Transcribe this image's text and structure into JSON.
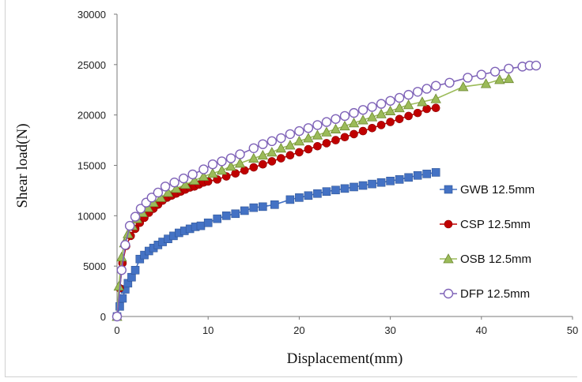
{
  "chart_data": {
    "type": "line",
    "xlabel": "Displacement(mm)",
    "ylabel": "Shear load(N)",
    "xlim": [
      0,
      50
    ],
    "ylim": [
      0,
      30000
    ],
    "xticks": [
      0,
      10,
      20,
      30,
      40,
      50
    ],
    "yticks": [
      0,
      5000,
      10000,
      15000,
      20000,
      25000,
      30000
    ],
    "grid": false,
    "legend_position": "right",
    "series": [
      {
        "name": "GWB 12.5mm",
        "color": "#4472c4",
        "marker": "square",
        "x": [
          0,
          0.3,
          0.6,
          0.9,
          1.2,
          1.6,
          2.0,
          2.5,
          3.0,
          3.5,
          4.0,
          4.5,
          5.0,
          5.6,
          6.2,
          6.8,
          7.4,
          8.0,
          8.6,
          9.2,
          10,
          11,
          12,
          13,
          14,
          15,
          16,
          17.3,
          19,
          20,
          21,
          22,
          23,
          24,
          25,
          26,
          27,
          28,
          29,
          30,
          31,
          32,
          33,
          34,
          35
        ],
        "y": [
          0,
          1000,
          1800,
          2700,
          3300,
          3900,
          4600,
          5700,
          6100,
          6500,
          6800,
          7100,
          7400,
          7700,
          8000,
          8300,
          8500,
          8700,
          8900,
          9000,
          9300,
          9700,
          10000,
          10200,
          10500,
          10800,
          10900,
          11100,
          11600,
          11800,
          12000,
          12200,
          12400,
          12550,
          12700,
          12850,
          13000,
          13150,
          13300,
          13450,
          13600,
          13800,
          14000,
          14150,
          14300
        ]
      },
      {
        "name": "CSP 12.5mm",
        "color": "#c00000",
        "marker": "circle",
        "x": [
          0,
          0.3,
          0.6,
          1.0,
          1.5,
          2.0,
          2.5,
          3.0,
          3.5,
          4.0,
          4.5,
          5.0,
          5.5,
          6.0,
          6.5,
          7.0,
          7.5,
          8.0,
          8.5,
          9.0,
          9.5,
          10,
          11,
          12,
          13,
          14,
          15,
          16,
          17,
          18,
          19,
          20,
          21,
          22,
          23,
          24,
          25,
          26,
          27,
          28,
          29,
          30,
          31,
          32,
          33,
          34,
          35
        ],
        "y": [
          0,
          2800,
          5300,
          7000,
          8000,
          8700,
          9300,
          9800,
          10300,
          10700,
          11100,
          11500,
          11800,
          12000,
          12200,
          12400,
          12600,
          12800,
          12900,
          13100,
          13300,
          13400,
          13600,
          13900,
          14200,
          14500,
          14800,
          15100,
          15400,
          15700,
          16000,
          16300,
          16600,
          16900,
          17200,
          17500,
          17800,
          18100,
          18400,
          18700,
          19000,
          19300,
          19600,
          19900,
          20200,
          20600,
          20700
        ]
      },
      {
        "name": "OSB 12.5mm",
        "color": "#9bbb59",
        "marker": "triangle",
        "x": [
          0,
          0.2,
          0.5,
          0.8,
          1.2,
          1.7,
          2.2,
          2.8,
          3.4,
          4.0,
          4.8,
          5.6,
          6.5,
          7.5,
          8.5,
          9.5,
          10.5,
          11.5,
          12.5,
          13.5,
          15,
          16,
          17,
          18,
          19,
          20,
          21,
          22,
          23,
          24,
          25,
          26,
          27,
          28,
          29,
          30,
          31,
          32,
          33.5,
          35,
          38,
          40.5,
          42,
          43
        ],
        "y": [
          0,
          3000,
          5900,
          7300,
          8200,
          9000,
          9700,
          10300,
          10800,
          11300,
          11800,
          12300,
          12700,
          13100,
          13500,
          13900,
          14200,
          14500,
          14900,
          15200,
          15700,
          16000,
          16300,
          16700,
          17000,
          17400,
          17700,
          18000,
          18300,
          18600,
          18900,
          19200,
          19500,
          19800,
          20100,
          20400,
          20700,
          21000,
          21300,
          21600,
          22800,
          23100,
          23500,
          23600
        ]
      },
      {
        "name": "DFP 12.5mm",
        "color": "#7f63b8",
        "marker": "circle-open",
        "x": [
          0,
          0.5,
          0.9,
          1.4,
          2.0,
          2.6,
          3.2,
          3.8,
          4.5,
          5.3,
          6.3,
          7.3,
          8.3,
          9.5,
          10.5,
          11.5,
          12.5,
          13.5,
          15,
          16,
          17,
          18,
          19,
          20,
          21,
          22,
          23,
          24,
          25,
          26,
          27,
          28,
          29,
          30,
          31,
          32,
          33,
          34,
          35,
          36.5,
          38.5,
          40,
          41.5,
          43,
          44.5,
          45.3,
          46
        ],
        "y": [
          0,
          4600,
          7100,
          9000,
          9900,
          10700,
          11300,
          11800,
          12300,
          12900,
          13300,
          13700,
          14100,
          14600,
          15100,
          15400,
          15700,
          16100,
          16700,
          17100,
          17400,
          17700,
          18100,
          18400,
          18700,
          19000,
          19300,
          19600,
          19900,
          20200,
          20500,
          20800,
          21100,
          21400,
          21700,
          22000,
          22300,
          22600,
          22900,
          23200,
          23700,
          24000,
          24300,
          24600,
          24800,
          24900,
          24900
        ]
      }
    ]
  }
}
